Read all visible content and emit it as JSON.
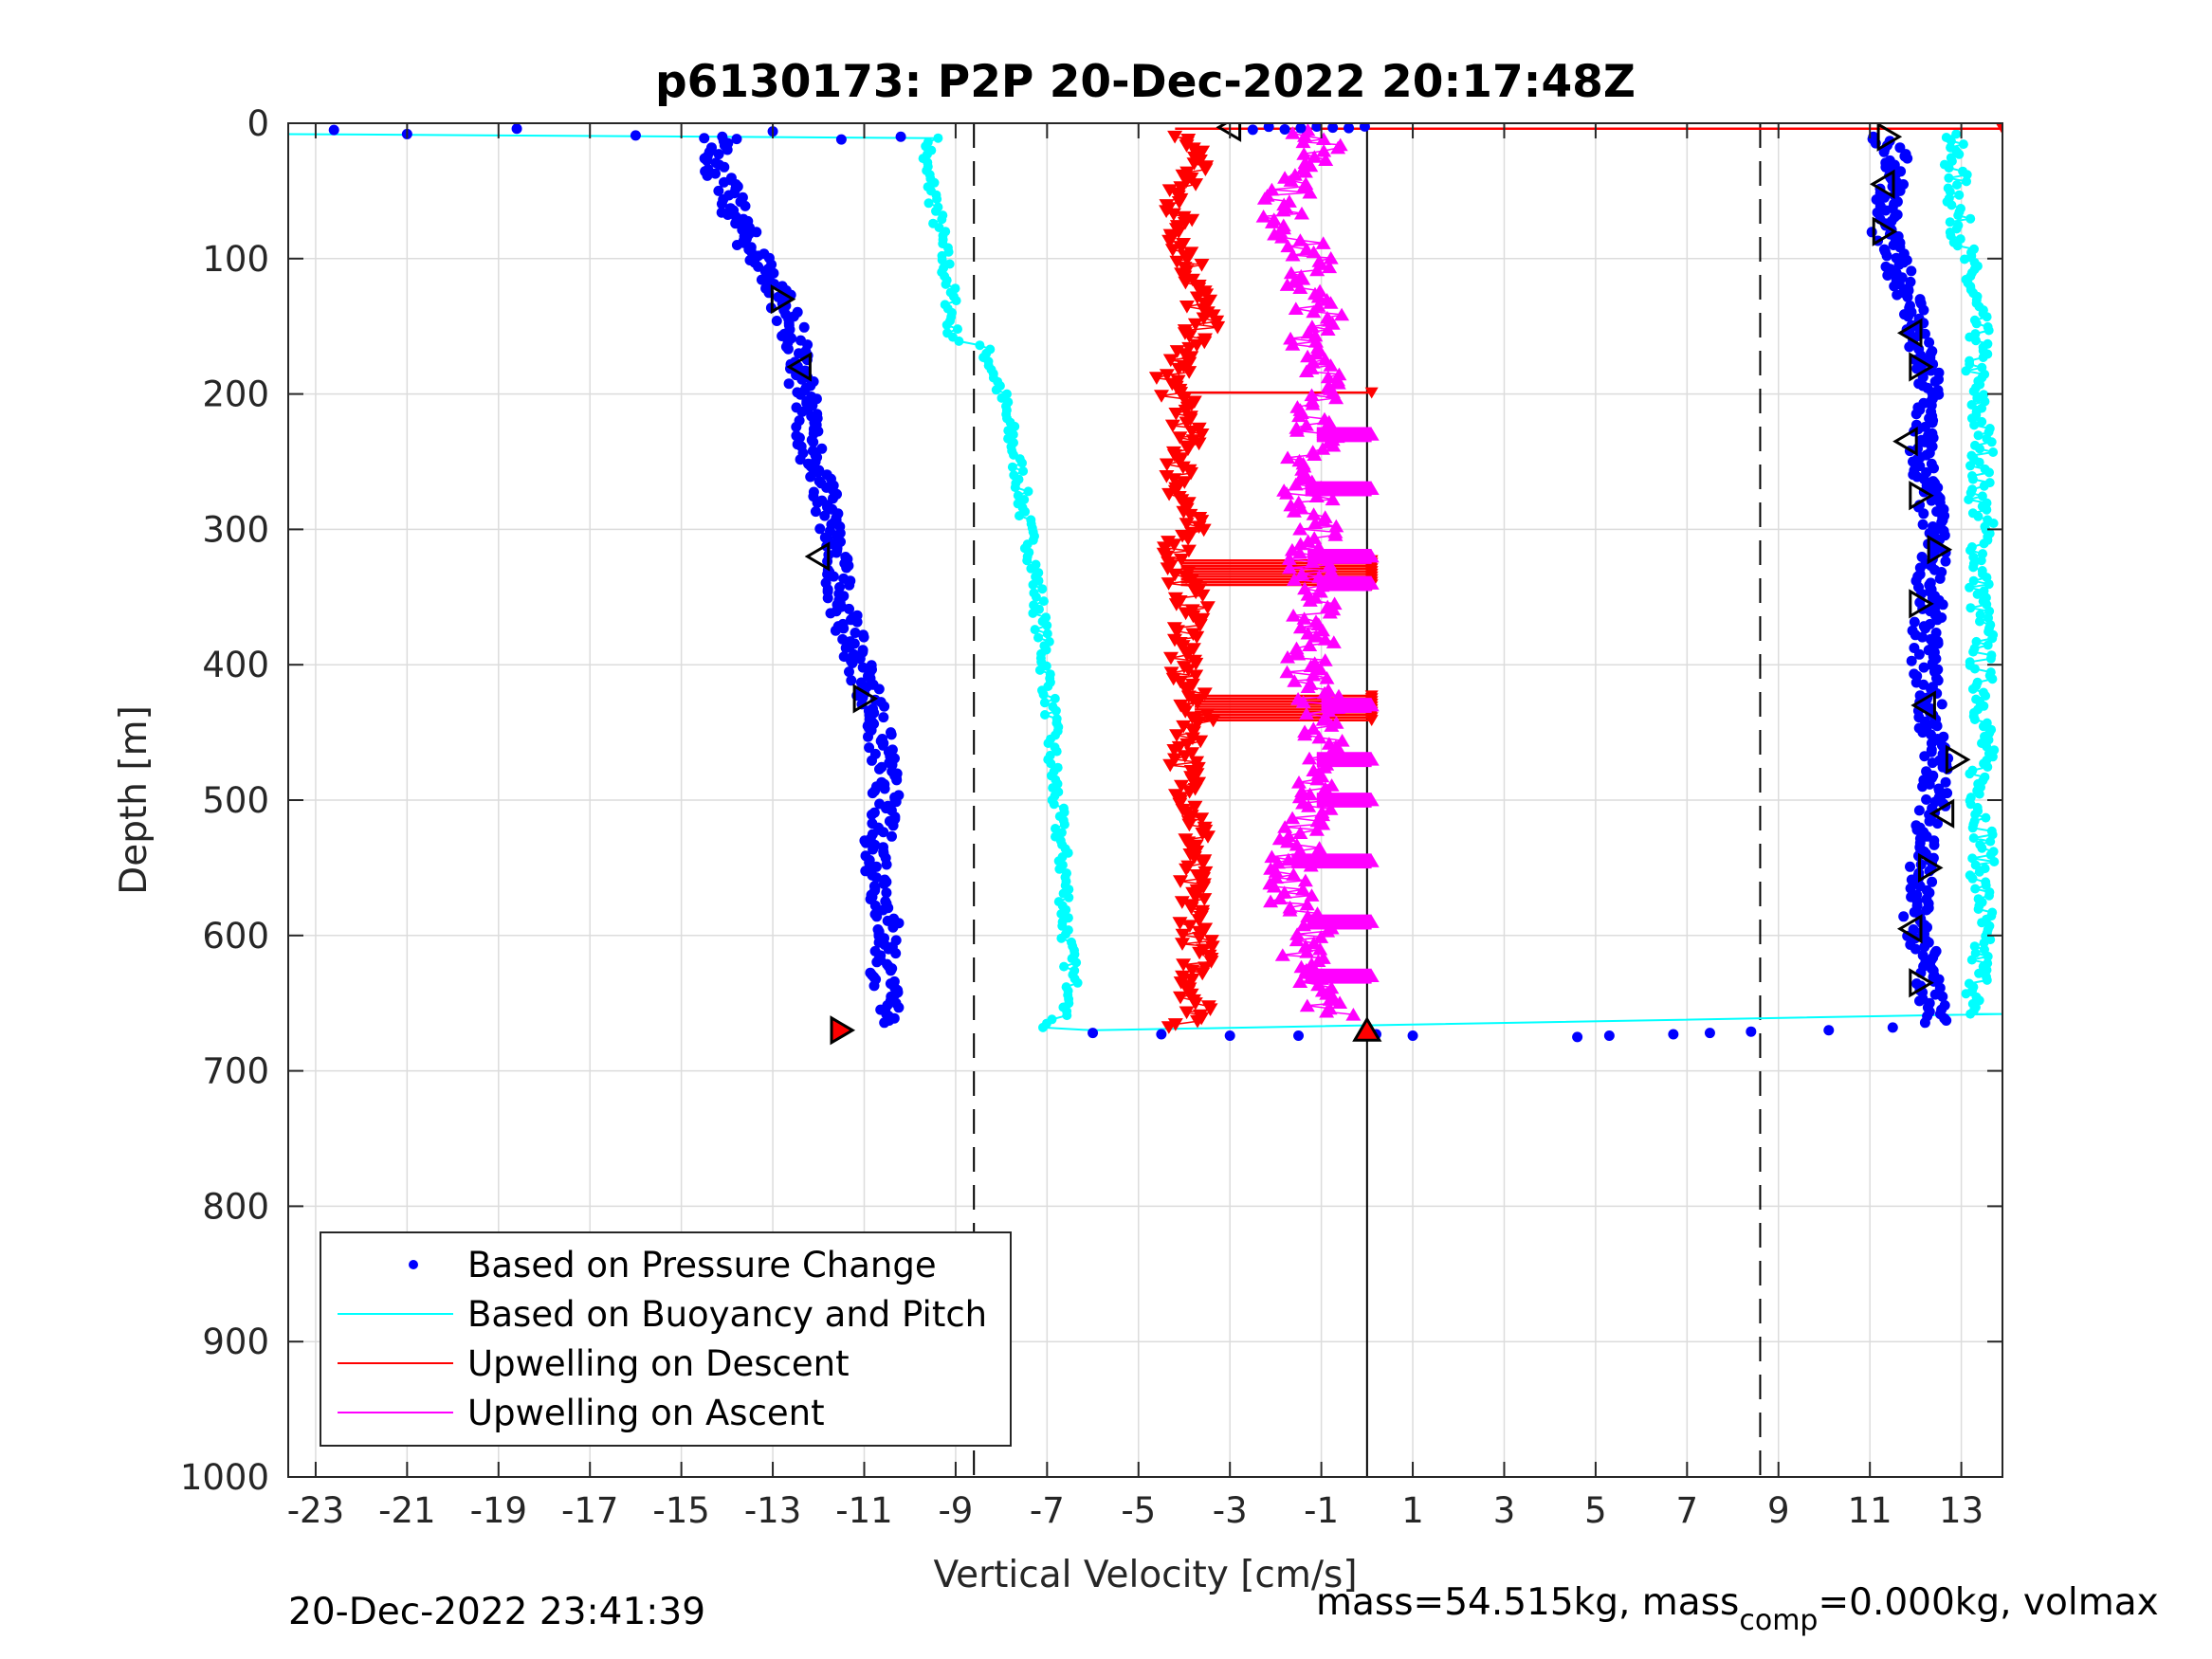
{
  "chart_data": {
    "type": "scatter",
    "title": "p6130173: P2P 20-Dec-2022 20:17:48Z",
    "xlabel": "Vertical Velocity [cm/s]",
    "ylabel": "Depth [m]",
    "xlim": [
      -23.6,
      13.9
    ],
    "ylim": [
      1000,
      0
    ],
    "y_reversed": true,
    "xticks": [
      -23,
      -21,
      -19,
      -17,
      -15,
      -13,
      -11,
      -9,
      -7,
      -5,
      -3,
      -1,
      1,
      3,
      5,
      7,
      9,
      11,
      13
    ],
    "yticks": [
      0,
      100,
      200,
      300,
      400,
      500,
      600,
      700,
      800,
      900,
      1000
    ],
    "grid": true,
    "legend_position": "bottom-left",
    "reference_lines": [
      {
        "x": -8.6,
        "style": "dashed",
        "color": "#000000"
      },
      {
        "x": 8.6,
        "style": "dashed",
        "color": "#000000"
      },
      {
        "x": 0.0,
        "style": "solid",
        "color": "#000000",
        "from_depth": 0,
        "to_depth": 1000
      }
    ],
    "series": [
      {
        "name": "Based on Pressure Change",
        "kind": "points",
        "color": "#0000ff",
        "descent": {
          "depth": [
            10,
            30,
            50,
            70,
            90,
            110,
            130,
            150,
            170,
            190,
            210,
            230,
            250,
            270,
            290,
            310,
            330,
            350,
            370,
            390,
            410,
            430,
            450,
            470,
            490,
            510,
            530,
            550,
            570,
            590,
            610,
            630,
            650,
            665
          ],
          "velocity": [
            -13.9,
            -14.3,
            -14.0,
            -13.8,
            -13.5,
            -13.1,
            -12.8,
            -12.6,
            -12.5,
            -12.4,
            -12.3,
            -12.2,
            -12.1,
            -11.9,
            -11.8,
            -11.7,
            -11.6,
            -11.5,
            -11.4,
            -11.2,
            -11.0,
            -10.8,
            -10.7,
            -10.6,
            -10.5,
            -10.6,
            -10.7,
            -10.7,
            -10.6,
            -10.5,
            -10.5,
            -10.6,
            -10.5,
            -10.3
          ]
        },
        "ascent": {
          "depth": [
            665,
            640,
            620,
            600,
            580,
            560,
            540,
            520,
            500,
            480,
            460,
            440,
            420,
            400,
            380,
            360,
            340,
            320,
            300,
            280,
            260,
            240,
            220,
            200,
            180,
            160,
            140,
            120,
            100,
            80,
            60,
            40,
            20,
            10
          ],
          "velocity": [
            12.5,
            12.3,
            12.2,
            12.1,
            12.0,
            12.1,
            12.2,
            12.3,
            12.4,
            12.5,
            12.4,
            12.3,
            12.3,
            12.2,
            12.2,
            12.3,
            12.3,
            12.4,
            12.4,
            12.3,
            12.2,
            12.1,
            12.2,
            12.3,
            12.2,
            12.0,
            12.0,
            11.8,
            11.5,
            11.3,
            11.4,
            11.6,
            11.5,
            11.2
          ]
        },
        "surface_transition": {
          "velocity": [
            -22.6,
            -21.0,
            -18.6,
            -16.0,
            -14.5,
            -13.0,
            -11.5,
            -10.2
          ],
          "depth": [
            5,
            8,
            4,
            9,
            11,
            6,
            12,
            10
          ]
        },
        "bottom_transition": {
          "velocity": [
            -6.0,
            -4.5,
            -3.0,
            -1.5,
            0.2,
            1.0,
            4.6,
            5.3,
            6.7,
            7.5,
            8.4,
            10.1,
            11.5
          ],
          "depth": [
            672,
            673,
            674,
            674,
            673,
            674,
            675,
            674,
            673,
            672,
            671,
            670,
            668
          ]
        }
      },
      {
        "name": "Based on Buoyancy and Pitch",
        "kind": "line+points",
        "color": "#00ffff",
        "descent": {
          "depth": [
            8,
            10,
            30,
            50,
            70,
            90,
            110,
            130,
            150,
            160,
            165,
            180,
            200,
            230,
            260,
            290,
            320,
            350,
            380,
            410,
            440,
            470,
            500,
            530,
            560,
            590,
            620,
            650,
            668
          ],
          "velocity": [
            -23.6,
            -9.5,
            -9.7,
            -9.5,
            -9.4,
            -9.3,
            -9.2,
            -9.1,
            -9.1,
            -9.0,
            -8.4,
            -8.2,
            -8.0,
            -7.8,
            -7.6,
            -7.5,
            -7.3,
            -7.2,
            -7.1,
            -7.0,
            -6.9,
            -6.9,
            -6.8,
            -6.7,
            -6.6,
            -6.6,
            -6.5,
            -6.4,
            -7.0
          ]
        },
        "ascent": {
          "depth": [
            660,
            640,
            620,
            600,
            580,
            560,
            540,
            520,
            500,
            480,
            460,
            440,
            420,
            400,
            380,
            360,
            340,
            320,
            300,
            280,
            260,
            240,
            220,
            200,
            180,
            160,
            140,
            120,
            100,
            80,
            60,
            40,
            20,
            8
          ],
          "velocity": [
            13.0,
            13.4,
            13.4,
            13.4,
            13.5,
            13.4,
            13.5,
            13.5,
            13.4,
            13.4,
            13.5,
            13.5,
            13.5,
            13.4,
            13.5,
            13.4,
            13.4,
            13.4,
            13.5,
            13.4,
            13.4,
            13.5,
            13.4,
            13.3,
            13.3,
            13.4,
            13.3,
            13.2,
            13.1,
            13.0,
            12.9,
            12.9,
            12.8,
            12.8
          ]
        }
      },
      {
        "name": "Upwelling on Descent",
        "kind": "line+markers",
        "marker": "triangle-down",
        "color": "#ff0000",
        "depth": [
          10,
          30,
          50,
          70,
          90,
          110,
          130,
          150,
          170,
          190,
          200,
          220,
          240,
          260,
          280,
          300,
          320,
          340,
          360,
          380,
          400,
          420,
          440,
          460,
          480,
          500,
          520,
          540,
          560,
          580,
          600,
          620,
          640,
          660,
          670
        ],
        "velocity": [
          -4.0,
          -3.6,
          -4.2,
          -4.1,
          -4.0,
          -3.8,
          -3.7,
          -3.6,
          -4.0,
          -4.3,
          -4.2,
          -3.9,
          -4.0,
          -4.1,
          -4.0,
          -3.9,
          -4.2,
          -4.0,
          -3.8,
          -3.9,
          -4.1,
          -3.9,
          -3.7,
          -3.9,
          -4.0,
          -3.8,
          -3.7,
          -3.8,
          -3.9,
          -3.8,
          -3.7,
          -3.7,
          -3.8,
          -3.6,
          -4.2
        ],
        "spikes": [
          {
            "depth": 200,
            "velocity": 0.1
          },
          {
            "depth": 333,
            "velocity": 0.1
          },
          {
            "depth": 433,
            "velocity": 0.1
          },
          {
            "depth": 5,
            "velocity": 13.9
          }
        ]
      },
      {
        "name": "Upwelling on Ascent",
        "kind": "line+markers",
        "marker": "triangle-up",
        "color": "#ff00ff",
        "depth": [
          660,
          640,
          620,
          600,
          580,
          560,
          540,
          520,
          500,
          480,
          460,
          440,
          420,
          400,
          380,
          360,
          340,
          320,
          300,
          280,
          260,
          240,
          220,
          200,
          180,
          160,
          140,
          120,
          100,
          80,
          60,
          40,
          20,
          5
        ],
        "velocity": [
          -0.7,
          -1.2,
          -1.5,
          -1.0,
          -1.6,
          -1.8,
          -1.6,
          -1.3,
          -1.1,
          -1.2,
          -1.0,
          -0.9,
          -1.1,
          -1.4,
          -1.0,
          -1.2,
          -1.1,
          -1.3,
          -1.0,
          -1.2,
          -1.5,
          -1.2,
          -1.0,
          -1.1,
          -0.8,
          -1.2,
          -1.0,
          -1.4,
          -1.2,
          -1.6,
          -2.0,
          -1.3,
          -1.0,
          -1.2
        ],
        "spikes_depths": [
          230,
          270,
          320,
          340,
          430,
          470,
          500,
          545,
          590,
          630
        ]
      }
    ],
    "turn_markers": {
      "color": "#000000",
      "descent": [
        {
          "depth": 130,
          "velocity": -12.8,
          "dir": "right"
        },
        {
          "depth": 180,
          "velocity": -12.4,
          "dir": "left"
        },
        {
          "depth": 320,
          "velocity": -12.0,
          "dir": "left"
        },
        {
          "depth": 425,
          "velocity": -11.0,
          "dir": "right"
        }
      ],
      "ascent": [
        {
          "depth": 10,
          "velocity": 11.4,
          "dir": "right"
        },
        {
          "depth": 45,
          "velocity": 11.3,
          "dir": "left"
        },
        {
          "depth": 80,
          "velocity": 11.3,
          "dir": "right"
        },
        {
          "depth": 155,
          "velocity": 11.9,
          "dir": "left"
        },
        {
          "depth": 180,
          "velocity": 12.1,
          "dir": "right"
        },
        {
          "depth": 235,
          "velocity": 11.8,
          "dir": "left"
        },
        {
          "depth": 275,
          "velocity": 12.1,
          "dir": "right"
        },
        {
          "depth": 315,
          "velocity": 12.5,
          "dir": "right"
        },
        {
          "depth": 355,
          "velocity": 12.1,
          "dir": "right"
        },
        {
          "depth": 430,
          "velocity": 12.2,
          "dir": "left"
        },
        {
          "depth": 470,
          "velocity": 12.9,
          "dir": "right"
        },
        {
          "depth": 510,
          "velocity": 12.6,
          "dir": "left"
        },
        {
          "depth": 550,
          "velocity": 12.3,
          "dir": "right"
        },
        {
          "depth": 595,
          "velocity": 11.9,
          "dir": "left"
        },
        {
          "depth": 635,
          "velocity": 12.1,
          "dir": "right"
        }
      ],
      "surface": {
        "depth": 3,
        "velocity": -3.0,
        "dir": "left"
      },
      "bottom": [
        {
          "depth": 670,
          "velocity": -11.5,
          "dir": "right",
          "fill": "#ff0000"
        },
        {
          "depth": 670,
          "velocity": 0.0,
          "dir": "up",
          "fill": "#ff0000"
        }
      ]
    }
  },
  "footer": {
    "timestamp": "20-Dec-2022 23:41:39",
    "mass_prefix": "mass=54.515kg, mass",
    "mass_sub": "comp",
    "mass_suffix": "=0.000kg, volmax"
  }
}
